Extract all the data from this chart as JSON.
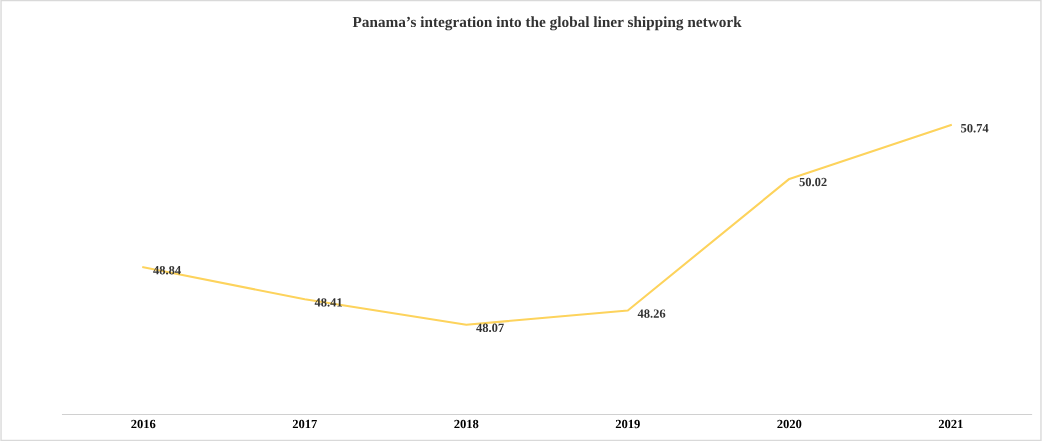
{
  "chart_data": {
    "type": "line",
    "title": "Panama’s integration into the global liner shipping network",
    "categories": [
      "2016",
      "2017",
      "2018",
      "2019",
      "2020",
      "2021"
    ],
    "series": [
      {
        "color": "#fdd35c",
        "values": [
          48.84,
          48.41,
          48.07,
          48.26,
          50.02,
          50.74
        ]
      }
    ],
    "data_labels": true,
    "grid": false,
    "legend": false,
    "marker": "none",
    "line_style": "solid",
    "tick_labels": "x"
  }
}
